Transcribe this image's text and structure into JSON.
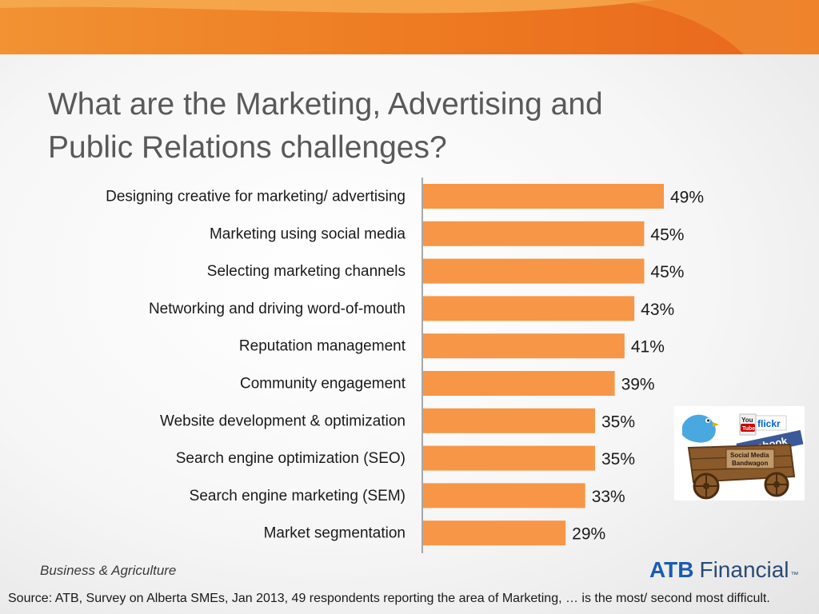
{
  "header": {
    "title_line1": "What are the Marketing, Advertising and",
    "title_line2": "Public Relations challenges?"
  },
  "chart_data": {
    "type": "bar",
    "orientation": "horizontal",
    "categories": [
      "Designing creative for marketing/ advertising",
      "Marketing using social media",
      "Selecting marketing channels",
      "Networking and driving word-of-mouth",
      "Reputation management",
      "Community engagement",
      "Website development & optimization",
      "Search engine optimization (SEO)",
      "Search engine marketing (SEM)",
      "Market segmentation"
    ],
    "values": [
      49,
      45,
      45,
      43,
      41,
      39,
      35,
      35,
      33,
      29
    ],
    "value_labels": [
      "49%",
      "45%",
      "45%",
      "43%",
      "41%",
      "39%",
      "35%",
      "35%",
      "33%",
      "29%"
    ],
    "unit": "%",
    "xlim": [
      0,
      49
    ],
    "bar_color": "#F79646",
    "grid": false,
    "legend": "none"
  },
  "image": {
    "caption_top": "facebook",
    "caption_middle": "Social Media",
    "caption_bottom": "Bandwagon",
    "icon_you": "You",
    "icon_tube": "Tube",
    "icon_flickr": "flickr"
  },
  "footer": {
    "division": "Business & Agriculture",
    "logo_abbr": "ATB",
    "logo_name": "Financial",
    "logo_tm": "™",
    "source": "Source: ATB, Survey on Alberta SMEs, Jan 2013, 49 respondents reporting the area of Marketing, … is the most/ second most difficult."
  },
  "colors": {
    "accent_orange": "#F79646",
    "banner_orange": "#EE7A22",
    "title_gray": "#595959",
    "brand_blue": "#1A5BB0"
  }
}
